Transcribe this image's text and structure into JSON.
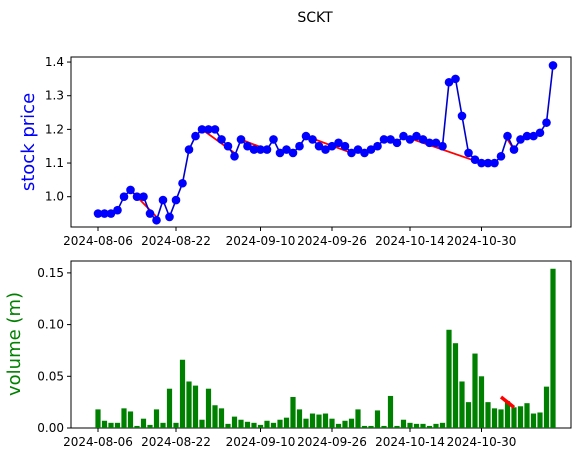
{
  "chart_data": [
    {
      "type": "line",
      "title": "SCKT",
      "ylabel": "stock price",
      "ylabel_color": "#0000ff",
      "line_color": "#0000cc",
      "marker_color": "#0000ff",
      "trend_color": "#ff0000",
      "ylim": [
        0.91,
        1.415
      ],
      "yticks": [
        "1.0",
        "1.1",
        "1.2",
        "1.3",
        "1.4"
      ],
      "ytick_values": [
        1.0,
        1.1,
        1.2,
        1.3,
        1.4
      ],
      "xticks": [
        "2024-08-06",
        "2024-08-22",
        "2024-09-10",
        "2024-09-26",
        "2024-10-14",
        "2024-10-30"
      ],
      "xtick_index": [
        0,
        12,
        25,
        36,
        48,
        59
      ],
      "values": [
        0.95,
        0.95,
        0.95,
        0.96,
        1.0,
        1.02,
        1.0,
        1.0,
        0.95,
        0.93,
        0.99,
        0.94,
        0.99,
        1.04,
        1.14,
        1.18,
        1.2,
        1.2,
        1.2,
        1.17,
        1.15,
        1.12,
        1.17,
        1.15,
        1.14,
        1.14,
        1.14,
        1.17,
        1.13,
        1.14,
        1.13,
        1.15,
        1.18,
        1.17,
        1.15,
        1.14,
        1.15,
        1.16,
        1.15,
        1.13,
        1.14,
        1.13,
        1.14,
        1.15,
        1.17,
        1.17,
        1.16,
        1.18,
        1.17,
        1.18,
        1.17,
        1.16,
        1.16,
        1.15,
        1.34,
        1.35,
        1.24,
        1.13,
        1.11,
        1.1,
        1.1,
        1.1,
        1.12,
        1.18,
        1.14,
        1.17,
        1.18,
        1.18,
        1.19,
        1.22,
        1.39
      ],
      "trend_segments": [
        [
          [
            5,
            1.02
          ],
          [
            9,
            0.94
          ]
        ],
        [
          [
            16,
            1.2
          ],
          [
            21,
            1.13
          ]
        ],
        [
          [
            22,
            1.17
          ],
          [
            26,
            1.14
          ]
        ],
        [
          [
            32,
            1.18
          ],
          [
            39,
            1.13
          ]
        ],
        [
          [
            47,
            1.18
          ],
          [
            59,
            1.1
          ]
        ],
        [
          [
            63,
            1.17
          ],
          [
            64,
            1.14
          ]
        ]
      ]
    },
    {
      "type": "bar",
      "ylabel": "volume (m)",
      "ylabel_color": "#008000",
      "bar_color": "#008000",
      "trend_color": "#ff0000",
      "ylim": [
        0.0,
        0.1615
      ],
      "yticks": [
        "0.00",
        "0.05",
        "0.10",
        "0.15"
      ],
      "ytick_values": [
        0.0,
        0.05,
        0.1,
        0.15
      ],
      "xticks": [
        "2024-08-06",
        "2024-08-22",
        "2024-09-10",
        "2024-09-26",
        "2024-10-14",
        "2024-10-30"
      ],
      "xtick_index": [
        0,
        12,
        25,
        36,
        48,
        59
      ],
      "values": [
        0.018,
        0.007,
        0.005,
        0.005,
        0.019,
        0.016,
        0.002,
        0.009,
        0.003,
        0.018,
        0.005,
        0.038,
        0.005,
        0.066,
        0.045,
        0.041,
        0.008,
        0.038,
        0.022,
        0.019,
        0.004,
        0.011,
        0.008,
        0.006,
        0.005,
        0.003,
        0.007,
        0.005,
        0.008,
        0.01,
        0.03,
        0.018,
        0.009,
        0.014,
        0.013,
        0.014,
        0.009,
        0.004,
        0.007,
        0.009,
        0.018,
        0.002,
        0.002,
        0.017,
        0.002,
        0.031,
        0.002,
        0.008,
        0.005,
        0.004,
        0.004,
        0.002,
        0.004,
        0.005,
        0.095,
        0.082,
        0.045,
        0.025,
        0.072,
        0.05,
        0.025,
        0.019,
        0.018,
        0.026,
        0.02,
        0.021,
        0.024,
        0.014,
        0.015,
        0.04,
        0.154
      ],
      "trend_segments": [
        [
          [
            62,
            0.03
          ],
          [
            64,
            0.02
          ]
        ]
      ]
    }
  ]
}
